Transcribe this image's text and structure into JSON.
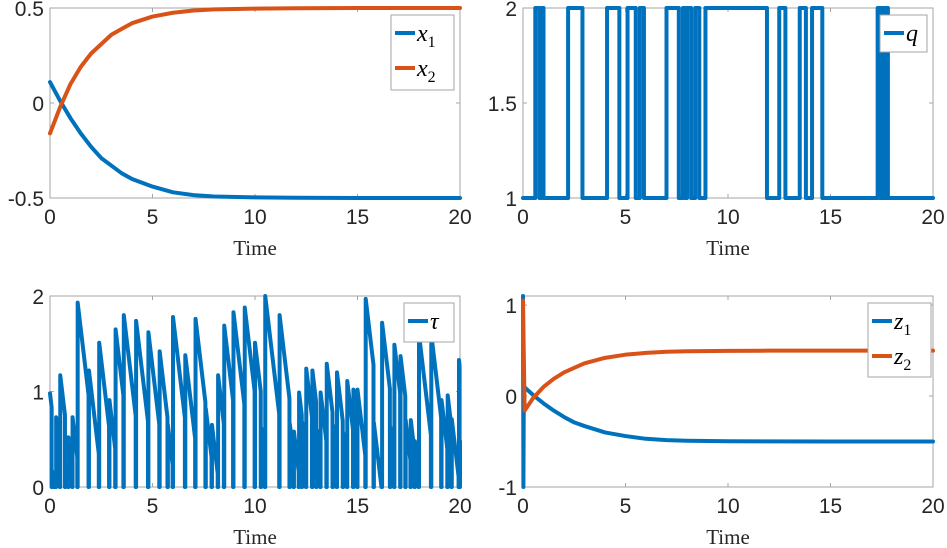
{
  "colors": {
    "blue": "#0072BD",
    "orange": "#D95319",
    "axis": "#a6a6a6",
    "text": "#262626"
  },
  "chart_data": [
    {
      "id": "x",
      "type": "line",
      "title": "",
      "xlabel": "Time",
      "ylabel": "",
      "xlim": [
        0,
        20
      ],
      "ylim": [
        -0.5,
        0.5
      ],
      "xticks": [
        0,
        5,
        10,
        15,
        20
      ],
      "yticks": [
        -0.5,
        0,
        0.5
      ],
      "ytick_labels": [
        "-0.5",
        "0",
        "0.5"
      ],
      "legend": {
        "position": "northeast",
        "entries": [
          "x1",
          "x2"
        ]
      },
      "series": [
        {
          "name": "x1",
          "label_main": "x",
          "label_sub": "1",
          "color": "#0072BD",
          "x": [
            0,
            0.5,
            1,
            1.5,
            2,
            2.5,
            3,
            3.5,
            4,
            5,
            6,
            7,
            8,
            10,
            12,
            15,
            20
          ],
          "y": [
            0.11,
            0.01,
            -0.08,
            -0.16,
            -0.23,
            -0.29,
            -0.33,
            -0.37,
            -0.4,
            -0.44,
            -0.47,
            -0.485,
            -0.492,
            -0.497,
            -0.499,
            -0.5,
            -0.5
          ]
        },
        {
          "name": "x2",
          "label_main": "x",
          "label_sub": "2",
          "color": "#D95319",
          "x": [
            0,
            0.5,
            1,
            1.5,
            2,
            2.5,
            3,
            3.5,
            4,
            5,
            6,
            7,
            8,
            10,
            12,
            15,
            20
          ],
          "y": [
            -0.16,
            -0.02,
            0.1,
            0.19,
            0.26,
            0.31,
            0.36,
            0.39,
            0.42,
            0.455,
            0.475,
            0.487,
            0.493,
            0.497,
            0.499,
            0.5,
            0.5
          ]
        }
      ]
    },
    {
      "id": "q",
      "type": "line",
      "title": "",
      "xlabel": "Time",
      "ylabel": "",
      "xlim": [
        0,
        20
      ],
      "ylim": [
        1,
        2
      ],
      "xticks": [
        0,
        5,
        10,
        15,
        20
      ],
      "yticks": [
        1,
        1.5,
        2
      ],
      "ytick_labels": [
        "1",
        "1.5",
        "2"
      ],
      "legend": {
        "position": "northeast",
        "entries": [
          "q"
        ]
      },
      "series": [
        {
          "name": "q",
          "label_main": "q",
          "label_sub": "",
          "color": "#0072BD",
          "step": true,
          "switch_times": [
            0.6,
            0.8,
            0.9,
            1.0,
            2.2,
            2.9,
            4.1,
            4.7,
            5.1,
            5.5,
            5.7,
            5.9,
            7.0,
            7.6,
            7.8,
            7.9,
            8.0,
            8.2,
            8.4,
            8.6,
            8.9,
            11.9,
            12.5,
            12.8,
            13.5,
            13.8,
            14.1,
            14.6,
            17.3,
            17.4,
            17.45,
            17.5,
            17.55,
            17.6,
            17.65,
            17.7,
            17.75,
            17.8
          ],
          "initial": 1,
          "values": [
            1,
            2
          ]
        }
      ]
    },
    {
      "id": "tau",
      "type": "line",
      "title": "",
      "xlabel": "Time",
      "ylabel": "",
      "xlim": [
        0,
        20
      ],
      "ylim": [
        0,
        2
      ],
      "xticks": [
        0,
        5,
        10,
        15,
        20
      ],
      "yticks": [
        0,
        1,
        2
      ],
      "ytick_labels": [
        "0",
        "1",
        "2"
      ],
      "legend": {
        "position": "northeast",
        "entries": [
          "tau"
        ]
      },
      "series": [
        {
          "name": "tau",
          "label_main": "τ",
          "label_sub": "",
          "color": "#0072BD",
          "peaks": [
            [
              0.0,
              0.98
            ],
            [
              0.1,
              0.17
            ],
            [
              0.3,
              0.73
            ],
            [
              0.5,
              1.17
            ],
            [
              0.75,
              0.53
            ],
            [
              0.9,
              0.52
            ],
            [
              1.1,
              0.73
            ],
            [
              1.35,
              1.93
            ],
            [
              1.9,
              1.22
            ],
            [
              2.4,
              1.51
            ],
            [
              2.9,
              0.91
            ],
            [
              3.2,
              1.65
            ],
            [
              3.6,
              1.8
            ],
            [
              4.2,
              1.74
            ],
            [
              4.8,
              1.62
            ],
            [
              5.35,
              1.42
            ],
            [
              5.75,
              0.65
            ],
            [
              6.0,
              1.78
            ],
            [
              6.6,
              1.38
            ],
            [
              7.1,
              1.76
            ],
            [
              7.6,
              0.82
            ],
            [
              7.9,
              0.65
            ],
            [
              8.2,
              1.17
            ],
            [
              8.5,
              1.69
            ],
            [
              8.95,
              1.83
            ],
            [
              9.5,
              1.88
            ],
            [
              10.0,
              1.51
            ],
            [
              10.3,
              0.62
            ],
            [
              10.5,
              2.0
            ],
            [
              11.2,
              1.8
            ],
            [
              11.7,
              0.66
            ],
            [
              11.9,
              0.58
            ],
            [
              12.15,
              0.99
            ],
            [
              12.3,
              0.68
            ],
            [
              12.5,
              1.24
            ],
            [
              12.8,
              1.22
            ],
            [
              13.0,
              0.6
            ],
            [
              13.2,
              0.99
            ],
            [
              13.5,
              1.29
            ],
            [
              13.8,
              0.65
            ],
            [
              14.0,
              1.2
            ],
            [
              14.3,
              0.57
            ],
            [
              14.5,
              1.11
            ],
            [
              14.8,
              1.02
            ],
            [
              15.0,
              1.02
            ],
            [
              15.4,
              1.97
            ],
            [
              15.8,
              0.67
            ],
            [
              16.2,
              1.72
            ],
            [
              16.6,
              0.63
            ],
            [
              16.8,
              1.49
            ],
            [
              17.1,
              1.37
            ],
            [
              17.35,
              0.7
            ],
            [
              17.6,
              0.7
            ],
            [
              17.8,
              0.48
            ],
            [
              18.0,
              1.6
            ],
            [
              18.6,
              1.6
            ],
            [
              19.1,
              0.91
            ],
            [
              19.4,
              0.96
            ],
            [
              19.6,
              0.71
            ],
            [
              19.95,
              1.33
            ],
            [
              20.0,
              0.48
            ]
          ]
        }
      ]
    },
    {
      "id": "z",
      "type": "line",
      "title": "",
      "xlabel": "Time",
      "ylabel": "",
      "xlim": [
        0,
        20
      ],
      "ylim": [
        -1,
        1.1
      ],
      "xticks": [
        0,
        5,
        10,
        15,
        20
      ],
      "yticks": [
        -1,
        0,
        1
      ],
      "ytick_labels": [
        "-1",
        "0",
        "1"
      ],
      "legend": {
        "position": "northeast",
        "entries": [
          "z1",
          "z2"
        ]
      },
      "series": [
        {
          "name": "z1",
          "label_main": "z",
          "label_sub": "1",
          "color": "#0072BD",
          "x": [
            0,
            0.02,
            0.04,
            0.06,
            0.5,
            1,
            1.5,
            2,
            2.5,
            3,
            4,
            5,
            6,
            7,
            8,
            10,
            12,
            15,
            20
          ],
          "y": [
            1.1,
            -1.0,
            0.1,
            0.1,
            0.01,
            -0.08,
            -0.16,
            -0.23,
            -0.29,
            -0.33,
            -0.4,
            -0.44,
            -0.47,
            -0.485,
            -0.492,
            -0.497,
            -0.499,
            -0.5,
            -0.5
          ]
        },
        {
          "name": "z2",
          "label_main": "z",
          "label_sub": "2",
          "color": "#D95319",
          "x": [
            0,
            0.08,
            0.5,
            1,
            1.5,
            2,
            2.5,
            3,
            4,
            5,
            6,
            7,
            8,
            10,
            12,
            15,
            20
          ],
          "y": [
            1.05,
            -0.16,
            -0.02,
            0.1,
            0.19,
            0.26,
            0.31,
            0.36,
            0.42,
            0.455,
            0.475,
            0.487,
            0.493,
            0.497,
            0.499,
            0.5,
            0.5
          ]
        }
      ]
    }
  ]
}
